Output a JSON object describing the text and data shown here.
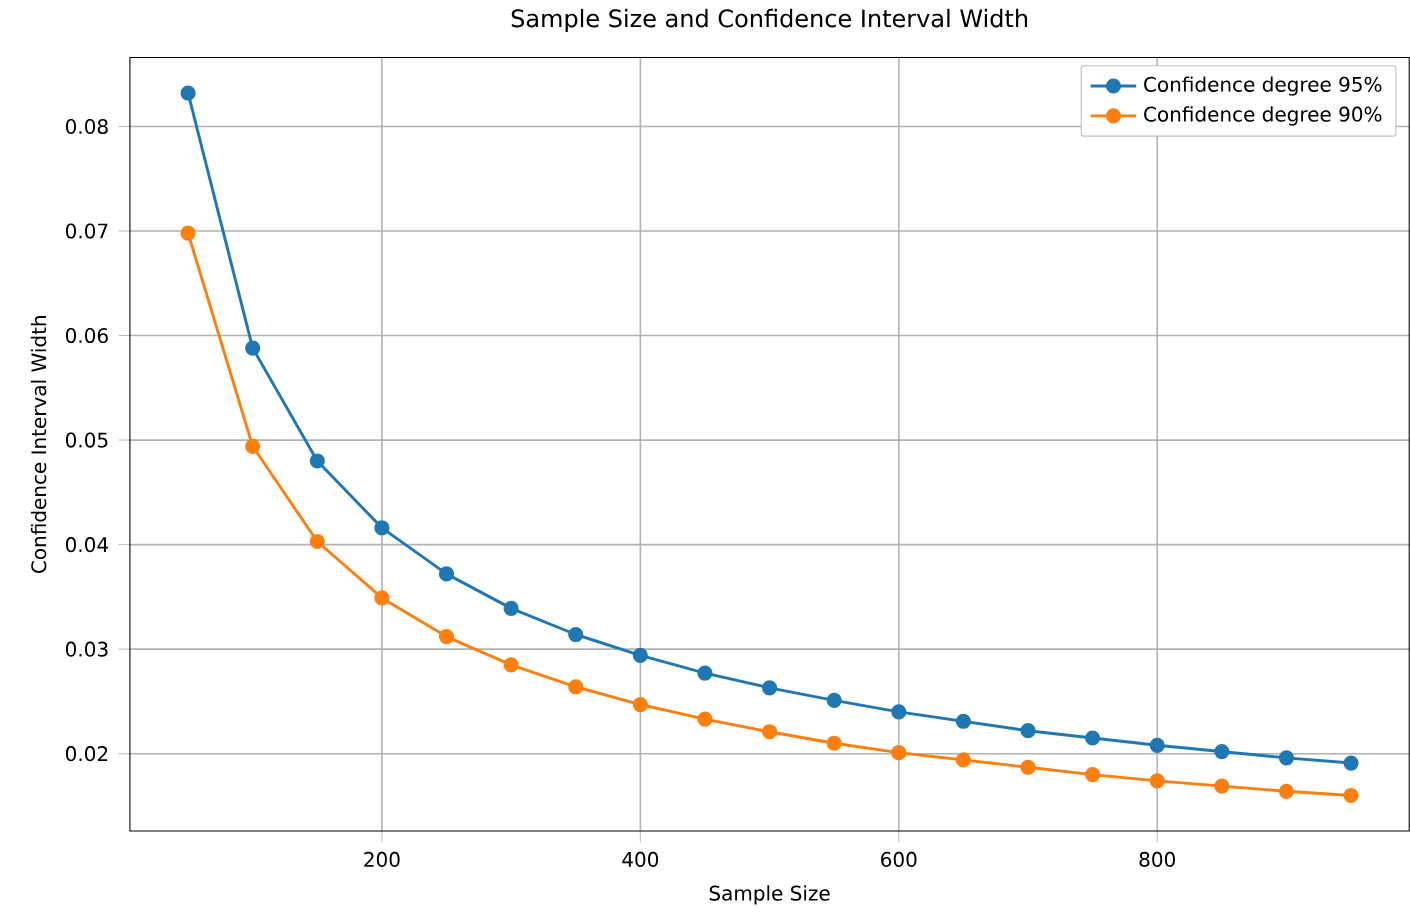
{
  "chart_data": {
    "type": "line",
    "title": "Sample Size and Confidence Interval Width",
    "xlabel": "Sample Size",
    "ylabel": "Confidence Interval Width",
    "x": [
      50,
      100,
      150,
      200,
      250,
      300,
      350,
      400,
      450,
      500,
      550,
      600,
      650,
      700,
      750,
      800,
      850,
      900,
      950
    ],
    "series": [
      {
        "name": "Confidence degree 95%",
        "color": "#1f77b4",
        "values": [
          0.0832,
          0.0588,
          0.048,
          0.0416,
          0.0372,
          0.0339,
          0.0314,
          0.0294,
          0.0277,
          0.0263,
          0.0251,
          0.024,
          0.0231,
          0.0222,
          0.0215,
          0.0208,
          0.0202,
          0.0196,
          0.0191
        ]
      },
      {
        "name": "Confidence degree 90%",
        "color": "#ff7f0e",
        "values": [
          0.0698,
          0.0494,
          0.0403,
          0.0349,
          0.0312,
          0.0285,
          0.0264,
          0.0247,
          0.0233,
          0.0221,
          0.021,
          0.0201,
          0.0194,
          0.0187,
          0.018,
          0.0174,
          0.0169,
          0.0164,
          0.016
        ]
      }
    ],
    "xlim": [
      5,
      995
    ],
    "ylim": [
      0.0126,
      0.0866
    ],
    "xticks": [
      200,
      400,
      600,
      800
    ],
    "yticks": [
      0.02,
      0.03,
      0.04,
      0.05,
      0.06,
      0.07,
      0.08
    ],
    "grid": true,
    "legend": "top right",
    "marker": "circle",
    "line_style": "solid"
  }
}
